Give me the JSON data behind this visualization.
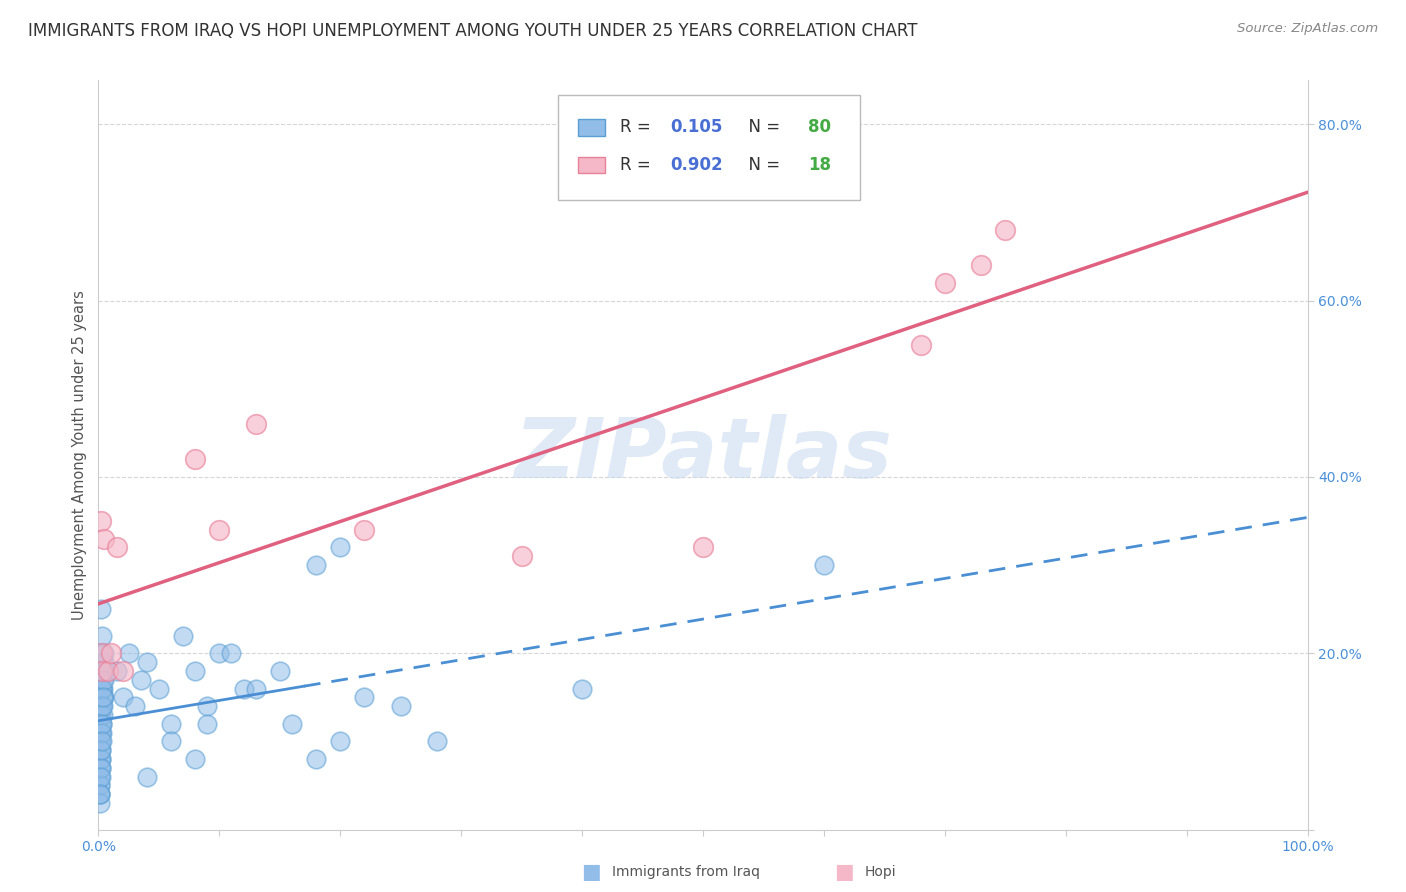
{
  "title": "IMMIGRANTS FROM IRAQ VS HOPI UNEMPLOYMENT AMONG YOUTH UNDER 25 YEARS CORRELATION CHART",
  "source": "Source: ZipAtlas.com",
  "ylabel": "Unemployment Among Youth under 25 years",
  "xlim": [
    0.0,
    1.0
  ],
  "ylim": [
    0.0,
    0.85
  ],
  "ytick_positions": [
    0.2,
    0.4,
    0.6,
    0.8
  ],
  "ytick_labels": [
    "20.0%",
    "40.0%",
    "60.0%",
    "80.0%"
  ],
  "xtick_positions": [
    0.0,
    0.5,
    1.0
  ],
  "xtick_labels": [
    "0.0%",
    "",
    "100.0%"
  ],
  "series1_label": "Immigrants from Iraq",
  "series1_color": "#91bde8",
  "series1_edge": "#5a9fd4",
  "series1_R": "0.105",
  "series1_N": "80",
  "series2_label": "Hopi",
  "series2_color": "#f4b8c8",
  "series2_edge": "#e8809a",
  "series2_R": "0.902",
  "series2_N": "18",
  "line1_color": "#4a8fd4",
  "line2_color": "#e06080",
  "background_color": "#ffffff",
  "grid_color": "#cccccc",
  "R_color": "#4a6fd4",
  "N_color": "#44aa44",
  "title_fontsize": 12,
  "series1_x": [
    0.003,
    0.001,
    0.002,
    0.001,
    0.004,
    0.003,
    0.002,
    0.001,
    0.005,
    0.002,
    0.001,
    0.003,
    0.002,
    0.001,
    0.004,
    0.002,
    0.001,
    0.003,
    0.005,
    0.002,
    0.001,
    0.004,
    0.002,
    0.003,
    0.001,
    0.005,
    0.002,
    0.001,
    0.003,
    0.002,
    0.001,
    0.004,
    0.003,
    0.002,
    0.001,
    0.005,
    0.002,
    0.003,
    0.001,
    0.004,
    0.002,
    0.003,
    0.001,
    0.005,
    0.002,
    0.001,
    0.003,
    0.004,
    0.002,
    0.001,
    0.015,
    0.02,
    0.025,
    0.03,
    0.035,
    0.04,
    0.05,
    0.06,
    0.07,
    0.08,
    0.09,
    0.1,
    0.12,
    0.15,
    0.08,
    0.06,
    0.04,
    0.09,
    0.11,
    0.13,
    0.16,
    0.18,
    0.2,
    0.22,
    0.25,
    0.28,
    0.18,
    0.2,
    0.4,
    0.6
  ],
  "series1_y": [
    0.22,
    0.2,
    0.25,
    0.18,
    0.16,
    0.14,
    0.12,
    0.1,
    0.15,
    0.08,
    0.13,
    0.18,
    0.11,
    0.09,
    0.17,
    0.14,
    0.07,
    0.16,
    0.19,
    0.13,
    0.06,
    0.15,
    0.1,
    0.12,
    0.08,
    0.18,
    0.11,
    0.06,
    0.14,
    0.09,
    0.05,
    0.13,
    0.16,
    0.07,
    0.04,
    0.2,
    0.08,
    0.11,
    0.05,
    0.14,
    0.07,
    0.12,
    0.04,
    0.17,
    0.09,
    0.03,
    0.1,
    0.15,
    0.06,
    0.04,
    0.18,
    0.15,
    0.2,
    0.14,
    0.17,
    0.19,
    0.16,
    0.12,
    0.22,
    0.18,
    0.14,
    0.2,
    0.16,
    0.18,
    0.08,
    0.1,
    0.06,
    0.12,
    0.2,
    0.16,
    0.12,
    0.08,
    0.1,
    0.15,
    0.14,
    0.1,
    0.3,
    0.32,
    0.16,
    0.3
  ],
  "series2_x": [
    0.002,
    0.003,
    0.003,
    0.005,
    0.008,
    0.01,
    0.015,
    0.02,
    0.08,
    0.1,
    0.13,
    0.22,
    0.35,
    0.5,
    0.68,
    0.7,
    0.73,
    0.75
  ],
  "series2_y": [
    0.35,
    0.2,
    0.18,
    0.33,
    0.18,
    0.2,
    0.32,
    0.18,
    0.42,
    0.34,
    0.46,
    0.34,
    0.31,
    0.32,
    0.55,
    0.62,
    0.64,
    0.68
  ]
}
